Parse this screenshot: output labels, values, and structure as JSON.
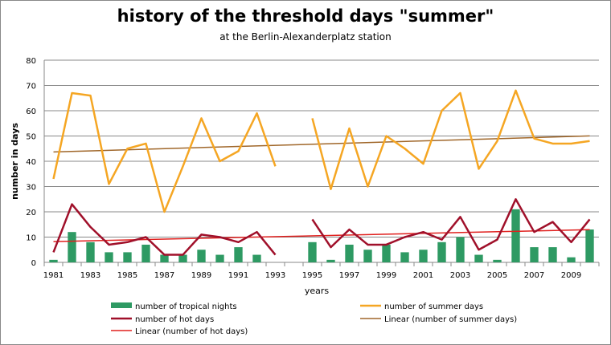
{
  "chart_data": {
    "type": "bar+line",
    "title": "history of the threshold days \"summer\"",
    "subtitle": "at the Berlin-Alexanderplatz station",
    "xlabel": "years",
    "ylabel": "number in days",
    "ylim": [
      0,
      80
    ],
    "yticks": [
      0,
      10,
      20,
      30,
      40,
      50,
      60,
      70,
      80
    ],
    "grid": true,
    "legend_placement": "bottom",
    "categories": [
      1981,
      1982,
      1983,
      1984,
      1985,
      1986,
      1987,
      1988,
      1989,
      1990,
      1991,
      1992,
      1993,
      1994,
      1995,
      1996,
      1997,
      1998,
      1999,
      2000,
      2001,
      2002,
      2003,
      2004,
      2005,
      2006,
      2007,
      2008,
      2009,
      2010
    ],
    "xtick_labels": [
      "1981",
      "1983",
      "1985",
      "1987",
      "1989",
      "1991",
      "1993",
      "1995",
      "1997",
      "1999",
      "2001",
      "2003",
      "2005",
      "2007",
      "2009"
    ],
    "series": [
      {
        "name": "number of tropical nights",
        "type": "bar",
        "color": "#2e9a63",
        "values": [
          1,
          12,
          8,
          4,
          4,
          7,
          3,
          3,
          5,
          3,
          6,
          3,
          0,
          null,
          8,
          1,
          7,
          5,
          7,
          4,
          5,
          8,
          10,
          3,
          1,
          21,
          6,
          6,
          2,
          13
        ]
      },
      {
        "name": "number of summer days",
        "type": "line",
        "color": "#f5a623",
        "values": [
          33,
          67,
          66,
          31,
          45,
          47,
          20,
          38,
          57,
          40,
          44,
          59,
          38,
          null,
          57,
          29,
          53,
          30,
          50,
          45,
          39,
          60,
          67,
          37,
          48,
          68,
          49,
          47,
          47,
          48
        ]
      },
      {
        "name": "number of hot days",
        "type": "line",
        "color": "#a0102a",
        "values": [
          4,
          23,
          14,
          7,
          8,
          10,
          3,
          3,
          11,
          10,
          8,
          12,
          3,
          null,
          17,
          6,
          13,
          7,
          7,
          10,
          12,
          9,
          18,
          5,
          9,
          25,
          12,
          16,
          8,
          17
        ]
      }
    ],
    "trendlines": [
      {
        "name": "Linear (number of summer days)",
        "of": "number of summer days",
        "color": "#a0672a"
      },
      {
        "name": "Linear (number of hot days)",
        "of": "number of hot days",
        "color": "#e0201e"
      }
    ]
  }
}
